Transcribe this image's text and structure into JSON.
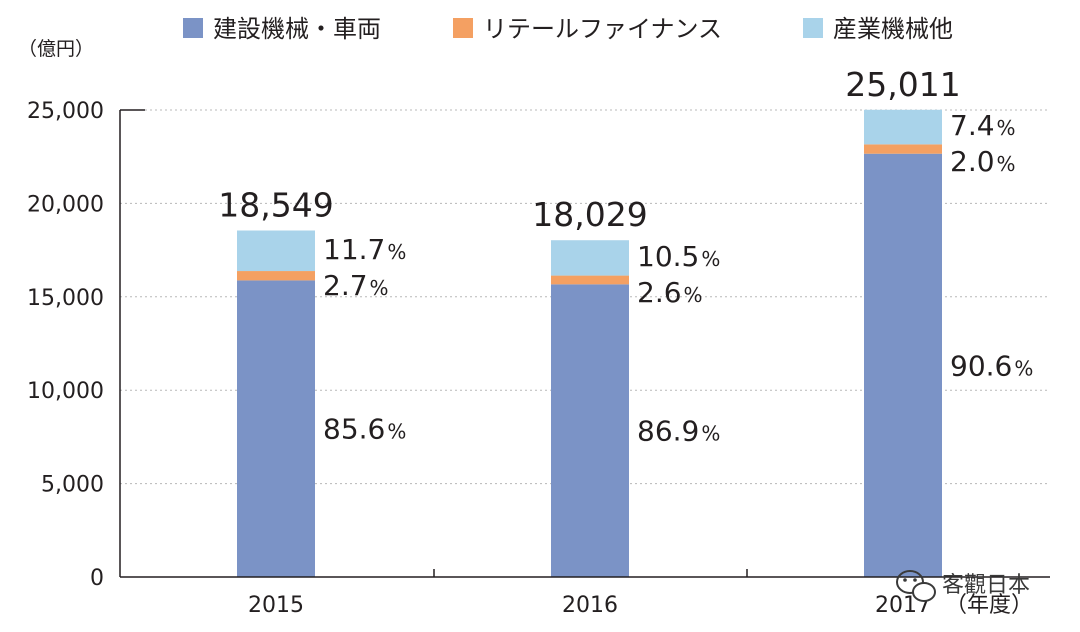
{
  "chart_data": {
    "type": "bar",
    "stacked": true,
    "unit_label": "（億円）",
    "categories": [
      "2015",
      "2016",
      "2017"
    ],
    "year_suffix": "（年度）",
    "ylim": [
      0,
      25000
    ],
    "yticks": [
      0,
      5000,
      10000,
      15000,
      20000,
      25000
    ],
    "ytick_labels": [
      "0",
      "5,000",
      "10,000",
      "15,000",
      "20,000",
      "25,000"
    ],
    "grid": true,
    "legend_position": "top",
    "series": [
      {
        "name": "建設機械・車両",
        "color": "#7b93c6",
        "share_labels": [
          "85.6",
          "86.9",
          "90.6"
        ],
        "values": [
          15878,
          15667,
          22660
        ]
      },
      {
        "name": "リテールファイナンス",
        "color": "#f4a062",
        "share_labels": [
          "2.7",
          "2.6",
          "2.0"
        ],
        "values": [
          501,
          469,
          500
        ]
      },
      {
        "name": "産業機械他",
        "color": "#a9d3ea",
        "share_labels": [
          "11.7",
          "10.5",
          "7.4"
        ],
        "values": [
          2170,
          1893,
          1851
        ]
      }
    ],
    "totals": [
      18549,
      18029,
      25011
    ],
    "total_labels": [
      "18,549",
      "18,029",
      "25,011"
    ],
    "percent_symbol": "%"
  },
  "watermark": {
    "text": "客觀日本"
  }
}
